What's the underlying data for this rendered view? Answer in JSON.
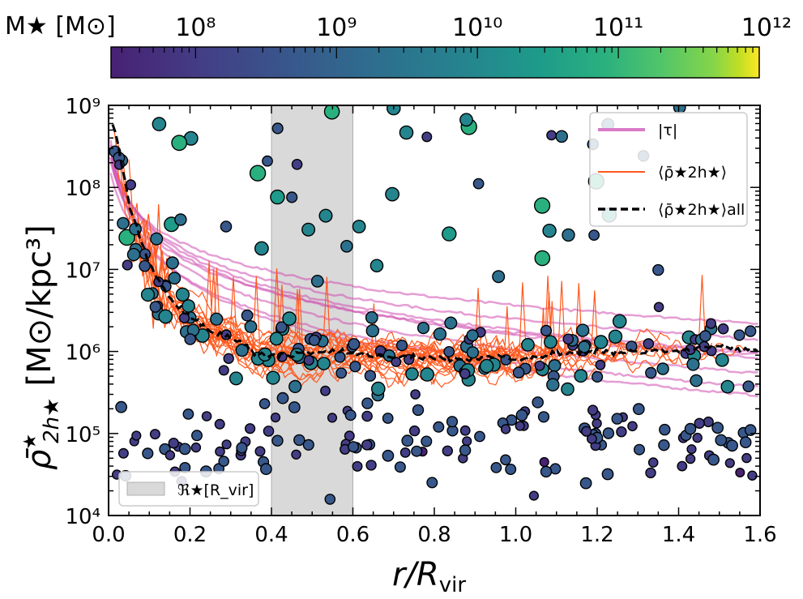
{
  "chart_data": {
    "type": "scatter",
    "xlabel_main": "r/R",
    "xlabel_sub": "vir",
    "ylabel_main": "ρ̄",
    "ylabel_sub": "2h★",
    "ylabel_sup": "★",
    "ylabel_units": "[M⊙/kpc³]",
    "xlim": [
      0.0,
      1.6
    ],
    "ylim_log10": [
      4,
      9
    ],
    "x_ticks": [
      "0.0",
      "0.2",
      "0.4",
      "0.6",
      "0.8",
      "1.0",
      "1.2",
      "1.4",
      "1.6"
    ],
    "y_ticks": [
      "10⁴",
      "10⁵",
      "10⁶",
      "10⁷",
      "10⁸",
      "10⁹"
    ],
    "colorbar": {
      "label": "M★ [M⊙]",
      "range_log10": [
        7.4,
        12
      ],
      "ticks": [
        "10⁸",
        "10⁹",
        "10¹⁰",
        "10¹¹",
        "10¹²"
      ],
      "tick_values_log10": [
        8,
        9,
        10,
        11,
        12
      ],
      "colormap": "viridis"
    },
    "shaded_region": {
      "x": [
        0.4,
        0.6
      ],
      "label": "ℜ★[R_vir]",
      "color": "#d9d9d9"
    },
    "legend": [
      {
        "label": "|τ|",
        "color": "#d97ac7",
        "style": "line"
      },
      {
        "label": "⟨ρ̄★2h★⟩",
        "color": "#ff5a1f",
        "style": "line"
      },
      {
        "label": "⟨ρ̄★2h★⟩all",
        "color": "#000000",
        "style": "dashed"
      }
    ],
    "mean_all_curve": [
      [
        0.01,
        8.8
      ],
      [
        0.02,
        8.6
      ],
      [
        0.03,
        8.3
      ],
      [
        0.04,
        8.1
      ],
      [
        0.05,
        7.8
      ],
      [
        0.07,
        7.5
      ],
      [
        0.09,
        7.2
      ],
      [
        0.12,
        6.9
      ],
      [
        0.15,
        6.65
      ],
      [
        0.18,
        6.5
      ],
      [
        0.22,
        6.35
      ],
      [
        0.26,
        6.22
      ],
      [
        0.3,
        6.18
      ],
      [
        0.33,
        6.08
      ],
      [
        0.36,
        5.98
      ],
      [
        0.4,
        5.95
      ],
      [
        0.45,
        5.97
      ],
      [
        0.5,
        5.98
      ],
      [
        0.55,
        6.02
      ],
      [
        0.6,
        5.98
      ],
      [
        0.65,
        5.95
      ],
      [
        0.7,
        5.94
      ],
      [
        0.75,
        5.93
      ],
      [
        0.8,
        5.92
      ],
      [
        0.85,
        5.9
      ],
      [
        0.9,
        5.91
      ],
      [
        0.95,
        5.93
      ],
      [
        1.0,
        5.9
      ],
      [
        1.05,
        5.93
      ],
      [
        1.1,
        5.97
      ],
      [
        1.15,
        5.98
      ],
      [
        1.2,
        6.0
      ],
      [
        1.25,
        5.99
      ],
      [
        1.3,
        5.99
      ],
      [
        1.35,
        6.01
      ],
      [
        1.4,
        6.0
      ],
      [
        1.45,
        6.04
      ],
      [
        1.5,
        6.07
      ],
      [
        1.55,
        6.02
      ],
      [
        1.6,
        6.0
      ]
    ],
    "tau_curves_log10": [
      {
        "A": 8.7,
        "x0": 0.015,
        "p": 1.0,
        "drop": 1.45
      },
      {
        "A": 8.6,
        "x0": 0.015,
        "p": 0.95,
        "drop": 1.38
      },
      {
        "A": 8.5,
        "x0": 0.02,
        "p": 1.05,
        "drop": 1.5
      },
      {
        "A": 8.8,
        "x0": 0.012,
        "p": 1.1,
        "drop": 1.55
      },
      {
        "A": 8.4,
        "x0": 0.02,
        "p": 0.9,
        "drop": 1.3
      },
      {
        "A": 8.6,
        "x0": 0.018,
        "p": 1.02,
        "drop": 1.46
      },
      {
        "A": 8.5,
        "x0": 0.017,
        "p": 0.98,
        "drop": 1.42
      },
      {
        "A": 8.3,
        "x0": 0.025,
        "p": 1.08,
        "drop": 1.52
      }
    ],
    "scatter_seed": 7
  }
}
